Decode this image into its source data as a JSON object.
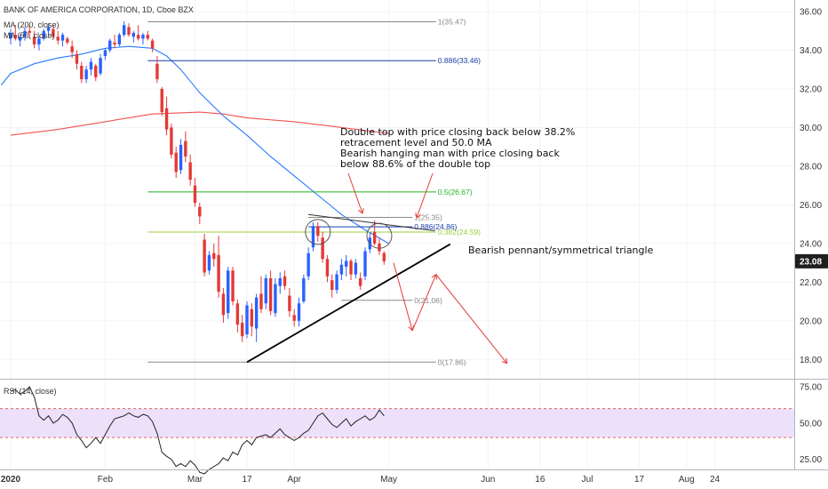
{
  "header": {
    "symbol_line": "BANK OF AMERICA CORPORATION, 1D, Cboe BZX",
    "ma200_label": "MA (200, close)",
    "ma50_label": "MA (50, close)",
    "rsi_label": "RSI (14, close)"
  },
  "colors": {
    "up": "#2962ff",
    "down": "#e53935",
    "ma200": "#ef5350",
    "ma50": "#2979ff",
    "fib_gray": "#888888",
    "fib_blue": "#1a3caa",
    "fib_green": "#1fb51f",
    "fib_lightgreen": "#9ccc3c",
    "rsi_band": "#e9d8fb",
    "price_tag": "#1f1f1f",
    "arrow": "#e53935"
  },
  "chart_data": [
    {
      "type": "candlestick",
      "title": "BANK OF AMERICA CORPORATION, 1D, Cboe BZX",
      "price_axis": {
        "ylim": [
          17.0,
          36.6
        ],
        "ticks": [
          "36.00",
          "34.00",
          "32.00",
          "30.00",
          "28.00",
          "26.00",
          "24.00",
          "22.00",
          "20.00",
          "18.00"
        ],
        "tick_values": [
          36,
          34,
          32,
          30,
          28,
          26,
          24,
          22,
          20,
          18
        ]
      },
      "current_price_label": "23.08",
      "current_price": 23.08,
      "time_axis": {
        "labels": [
          "2020",
          "Feb",
          "Mar",
          "17",
          "Apr",
          "May",
          "Jun",
          "16",
          "Jul",
          "17",
          "Aug",
          "24"
        ],
        "label_day_index": [
          0,
          20,
          39,
          50,
          60,
          80,
          101,
          112,
          122,
          133,
          143,
          149
        ]
      },
      "candles": [
        [
          34.6,
          35.1,
          34.3,
          34.9
        ],
        [
          34.8,
          35.3,
          34.5,
          34.6
        ],
        [
          34.5,
          34.8,
          34.2,
          34.7
        ],
        [
          34.7,
          35.2,
          34.5,
          35.0
        ],
        [
          35.0,
          35.3,
          34.6,
          34.9
        ],
        [
          34.7,
          35.0,
          34.1,
          34.3
        ],
        [
          34.3,
          34.7,
          34.0,
          34.6
        ],
        [
          34.6,
          35.1,
          34.5,
          35.0
        ],
        [
          35.0,
          35.4,
          34.8,
          35.2
        ],
        [
          35.1,
          35.3,
          34.6,
          34.7
        ],
        [
          34.7,
          35.0,
          34.3,
          34.5
        ],
        [
          34.5,
          34.9,
          34.2,
          34.8
        ],
        [
          34.6,
          34.7,
          34.3,
          34.4
        ],
        [
          34.2,
          34.5,
          33.6,
          33.9
        ],
        [
          33.8,
          34.0,
          33.0,
          33.3
        ],
        [
          33.2,
          33.4,
          32.3,
          32.5
        ],
        [
          32.5,
          33.2,
          32.3,
          33.0
        ],
        [
          33.0,
          33.6,
          32.7,
          33.4
        ],
        [
          33.2,
          33.3,
          32.4,
          32.6
        ],
        [
          32.8,
          33.8,
          32.7,
          33.6
        ],
        [
          33.7,
          34.1,
          33.5,
          34.0
        ],
        [
          34.0,
          34.6,
          33.9,
          34.5
        ],
        [
          34.4,
          34.8,
          34.1,
          34.3
        ],
        [
          34.3,
          34.9,
          34.2,
          34.8
        ],
        [
          34.8,
          35.5,
          34.7,
          35.3
        ],
        [
          35.2,
          35.4,
          34.7,
          34.8
        ],
        [
          34.7,
          35.0,
          34.4,
          34.9
        ],
        [
          34.8,
          35.3,
          34.5,
          34.6
        ],
        [
          34.6,
          34.9,
          34.3,
          34.8
        ],
        [
          34.8,
          35.0,
          34.5,
          34.6
        ],
        [
          34.5,
          34.6,
          33.9,
          34.1
        ],
        [
          33.3,
          33.7,
          32.3,
          32.5
        ],
        [
          32.0,
          32.1,
          30.6,
          30.8
        ],
        [
          31.0,
          31.6,
          29.6,
          29.9
        ],
        [
          30.0,
          30.2,
          28.4,
          28.6
        ],
        [
          28.7,
          29.0,
          27.4,
          27.7
        ],
        [
          27.8,
          29.4,
          27.6,
          29.1
        ],
        [
          29.3,
          29.8,
          28.2,
          28.5
        ],
        [
          28.2,
          28.6,
          27.0,
          27.3
        ],
        [
          27.0,
          27.4,
          25.9,
          26.1
        ],
        [
          25.9,
          26.1,
          25.0,
          25.4
        ],
        [
          24.2,
          24.5,
          22.3,
          22.5
        ],
        [
          22.6,
          23.6,
          22.4,
          23.4
        ],
        [
          23.5,
          24.0,
          22.8,
          23.2
        ],
        [
          23.4,
          24.4,
          21.2,
          21.5
        ],
        [
          21.4,
          21.7,
          19.9,
          20.3
        ],
        [
          20.4,
          22.8,
          20.1,
          22.6
        ],
        [
          22.6,
          22.8,
          20.8,
          21.0
        ],
        [
          20.9,
          21.1,
          19.4,
          19.8
        ],
        [
          19.9,
          20.3,
          18.9,
          19.2
        ],
        [
          19.3,
          21.0,
          19.1,
          20.8
        ],
        [
          20.6,
          20.9,
          19.2,
          19.7
        ],
        [
          19.6,
          21.4,
          18.9,
          21.2
        ],
        [
          21.4,
          22.3,
          20.4,
          20.6
        ],
        [
          20.9,
          22.4,
          20.6,
          22.2
        ],
        [
          22.2,
          22.6,
          20.3,
          20.5
        ],
        [
          20.4,
          22.2,
          20.2,
          21.9
        ],
        [
          21.8,
          22.5,
          21.4,
          22.2
        ],
        [
          22.3,
          22.6,
          21.6,
          21.8
        ],
        [
          21.3,
          21.7,
          20.2,
          20.5
        ],
        [
          20.3,
          20.6,
          19.7,
          20.0
        ],
        [
          20.0,
          21.2,
          19.7,
          20.9
        ],
        [
          21.0,
          22.4,
          20.9,
          22.2
        ],
        [
          22.3,
          23.8,
          22.1,
          23.5
        ],
        [
          23.8,
          25.1,
          23.6,
          24.9
        ],
        [
          24.9,
          25.1,
          24.1,
          24.4
        ],
        [
          24.3,
          24.6,
          23.0,
          23.2
        ],
        [
          23.2,
          23.4,
          22.0,
          22.3
        ],
        [
          22.1,
          22.4,
          21.2,
          21.6
        ],
        [
          21.6,
          22.6,
          21.4,
          22.4
        ],
        [
          22.4,
          23.2,
          22.1,
          22.9
        ],
        [
          22.8,
          23.4,
          22.3,
          23.1
        ],
        [
          23.1,
          23.2,
          22.1,
          22.4
        ],
        [
          22.4,
          23.2,
          22.2,
          23.0
        ],
        [
          22.2,
          22.5,
          21.6,
          21.8
        ],
        [
          22.3,
          23.8,
          22.1,
          23.6
        ],
        [
          23.7,
          24.6,
          23.5,
          24.3
        ],
        [
          24.6,
          25.2,
          23.9,
          24.0
        ],
        [
          24.0,
          24.3,
          23.4,
          23.6
        ],
        [
          23.5,
          23.6,
          22.9,
          23.08
        ]
      ],
      "ma200": [
        [
          0,
          29.6
        ],
        [
          10,
          29.9
        ],
        [
          20,
          30.3
        ],
        [
          30,
          30.7
        ],
        [
          40,
          30.8
        ],
        [
          45,
          30.7
        ],
        [
          50,
          30.5
        ],
        [
          60,
          30.3
        ],
        [
          70,
          30.0
        ],
        [
          80,
          29.7
        ]
      ],
      "ma50": [
        [
          -2,
          32.2
        ],
        [
          0,
          32.8
        ],
        [
          5,
          33.3
        ],
        [
          10,
          33.6
        ],
        [
          15,
          33.8
        ],
        [
          20,
          34.1
        ],
        [
          25,
          34.2
        ],
        [
          30,
          34.1
        ],
        [
          33,
          33.7
        ],
        [
          36,
          33.0
        ],
        [
          40,
          31.8
        ],
        [
          45,
          30.6
        ],
        [
          50,
          29.6
        ],
        [
          55,
          28.5
        ],
        [
          60,
          27.5
        ],
        [
          65,
          26.5
        ],
        [
          70,
          25.5
        ],
        [
          75,
          24.7
        ],
        [
          80,
          24.0
        ]
      ],
      "fib_levels": [
        {
          "label": "1(35.47)",
          "price": 35.47,
          "start_day": 29,
          "end_day": 90,
          "color": "gray"
        },
        {
          "label": "0.886(33.46)",
          "price": 33.46,
          "start_day": 29,
          "end_day": 90,
          "color": "blue"
        },
        {
          "label": "0.5(26.67)",
          "price": 26.67,
          "start_day": 29,
          "end_day": 90,
          "color": "green"
        },
        {
          "label": "0.382(24.59)",
          "price": 24.59,
          "start_day": 29,
          "end_day": 90,
          "color": "lightgreen"
        },
        {
          "label": "0(17.86)",
          "price": 17.86,
          "start_day": 29,
          "end_day": 90,
          "color": "gray"
        },
        {
          "label": "1(25.35)",
          "price": 25.35,
          "start_day": 63,
          "end_day": 85,
          "color": "gray"
        },
        {
          "label": "0.886(24.86)",
          "price": 24.86,
          "start_day": 63,
          "end_day": 85,
          "color": "blue"
        },
        {
          "label": "0(21.06)",
          "price": 21.06,
          "start_day": 70,
          "end_day": 85,
          "color": "gray"
        }
      ],
      "trendlines": {
        "support": [
          [
            50,
            17.86
          ],
          [
            84,
            23.6
          ]
        ],
        "pennant_top": [
          [
            63,
            25.5
          ],
          [
            84,
            24.75
          ]
        ]
      },
      "circles": [
        {
          "day": 65,
          "price": 24.6
        },
        {
          "day": 78,
          "price": 24.4
        }
      ],
      "annotations": {
        "double_top_lines": [
          "Double top with price closing back below 38.2%",
          "retracement level and 50.0 MA",
          "Bearish hanging man with price closing back",
          "below 88.6% of the double top"
        ],
        "pennant_label": "Bearish pennant/symmetrical triangle"
      },
      "projection_arrow": [
        [
          81,
          23.0
        ],
        [
          85,
          19.5
        ],
        [
          90,
          22.4
        ],
        [
          105,
          17.8
        ]
      ]
    },
    {
      "type": "line",
      "title": "RSI (14, close)",
      "ylim": [
        18,
        80
      ],
      "ticks": [
        "75.00",
        "50.00",
        "25.00"
      ],
      "tick_values": [
        75,
        50,
        25
      ],
      "band": [
        40,
        60
      ],
      "values": [
        72,
        73,
        70,
        72,
        75,
        68,
        55,
        52,
        55,
        50,
        52,
        56,
        54,
        50,
        42,
        38,
        33,
        36,
        40,
        36,
        42,
        48,
        53,
        54,
        55,
        57,
        55,
        54,
        56,
        55,
        51,
        43,
        30,
        27,
        25,
        20,
        22,
        20,
        24,
        21,
        16,
        15,
        18,
        20,
        22,
        26,
        24,
        30,
        28,
        35,
        38,
        35,
        40,
        41,
        42,
        40,
        43,
        46,
        42,
        40,
        38,
        40,
        43,
        45,
        50,
        55,
        57,
        53,
        49,
        47,
        50,
        53,
        48,
        51,
        53,
        55,
        52,
        54,
        59,
        55
      ]
    }
  ]
}
